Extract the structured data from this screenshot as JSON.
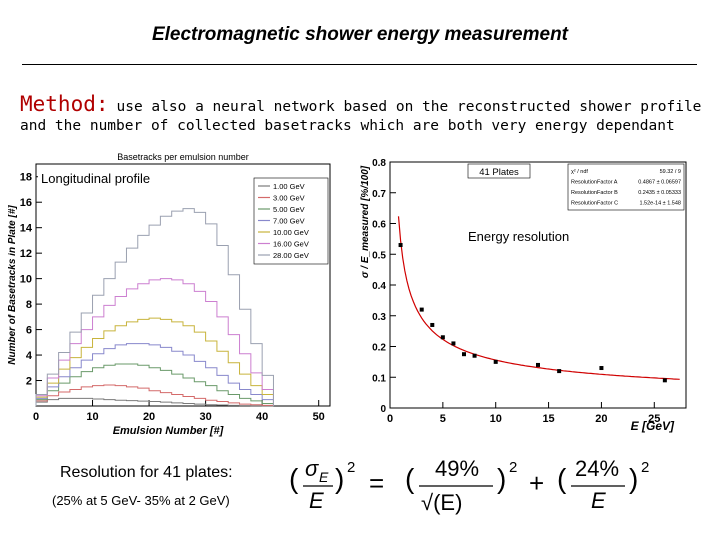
{
  "slide": {
    "title": "Electromagnetic shower energy measurement",
    "method_word": "Method:",
    "method_text": "use also a neural network based on the reconstructed shower profile",
    "method_line2": "and the number of collected basetracks which are both very energy dependant",
    "resolution_label": "Resolution for 41 plates:",
    "resolution_sub": "(25% at 5 GeV- 35% at 2 GeV)",
    "formula": {
      "lhs_sigma": "σ",
      "lhs_sub": "E",
      "lhs_den": "E",
      "exp": "2",
      "term1_num": "49%",
      "term1_den": "√(E)",
      "term2_num": "24%",
      "term2_den": "E"
    }
  },
  "chart_data": [
    {
      "type": "line",
      "caption": "Longitudinal profile",
      "title": "Basetracks per emulsion number",
      "xlabel": "Emulsion Number [#]",
      "ylabel": "Number of Basetracks in Plate [#]",
      "xlim": [
        0,
        52
      ],
      "ylim": [
        0,
        19
      ],
      "xticks": [
        "0",
        "10",
        "20",
        "30",
        "40",
        "50"
      ],
      "yticks": [
        "2",
        "4",
        "6",
        "8",
        "10",
        "12",
        "14",
        "16",
        "18"
      ],
      "legend_position": "top-right",
      "series": [
        {
          "name": "1.00 GeV",
          "color": "#7a7a7a",
          "x": [
            1,
            3,
            5,
            7,
            9,
            11,
            13,
            15,
            17,
            19,
            21,
            23,
            25,
            27,
            29,
            31,
            33,
            35,
            37,
            39,
            41
          ],
          "values": [
            0.3,
            0.5,
            0.6,
            0.6,
            0.6,
            0.55,
            0.5,
            0.45,
            0.42,
            0.38,
            0.35,
            0.3,
            0.25,
            0.2,
            0.15,
            0.1,
            0.08,
            0.05,
            0.03,
            0.02,
            0.01
          ]
        },
        {
          "name": "3.00 GeV",
          "color": "#d46a6a",
          "x": [
            1,
            3,
            5,
            7,
            9,
            11,
            13,
            15,
            17,
            19,
            21,
            23,
            25,
            27,
            29,
            31,
            33,
            35,
            37,
            39,
            41
          ],
          "values": [
            0.4,
            0.8,
            1.1,
            1.3,
            1.5,
            1.6,
            1.65,
            1.6,
            1.5,
            1.4,
            1.2,
            1.05,
            0.9,
            0.75,
            0.6,
            0.45,
            0.35,
            0.25,
            0.15,
            0.1,
            0.05
          ]
        },
        {
          "name": "5.00 GeV",
          "color": "#6a9a6a",
          "x": [
            1,
            3,
            5,
            7,
            9,
            11,
            13,
            15,
            17,
            19,
            21,
            23,
            25,
            27,
            29,
            31,
            33,
            35,
            37,
            39,
            41
          ],
          "values": [
            0.5,
            1.2,
            1.8,
            2.3,
            2.7,
            3.0,
            3.2,
            3.3,
            3.3,
            3.2,
            3.0,
            2.8,
            2.5,
            2.2,
            1.9,
            1.6,
            1.2,
            0.9,
            0.6,
            0.4,
            0.2
          ]
        },
        {
          "name": "7.00 GeV",
          "color": "#8888cc",
          "x": [
            1,
            3,
            5,
            7,
            9,
            11,
            13,
            15,
            17,
            19,
            21,
            23,
            25,
            27,
            29,
            31,
            33,
            35,
            37,
            39,
            41
          ],
          "values": [
            0.6,
            1.5,
            2.3,
            3.0,
            3.6,
            4.1,
            4.5,
            4.8,
            4.9,
            4.9,
            4.8,
            4.6,
            4.3,
            4.0,
            3.5,
            3.0,
            2.4,
            1.8,
            1.3,
            0.9,
            0.5
          ]
        },
        {
          "name": "10.00 GeV",
          "color": "#c8b43c",
          "x": [
            1,
            3,
            5,
            7,
            9,
            11,
            13,
            15,
            17,
            19,
            21,
            23,
            25,
            27,
            29,
            31,
            33,
            35,
            37,
            39,
            41
          ],
          "values": [
            0.7,
            1.8,
            2.9,
            3.8,
            4.6,
            5.3,
            5.9,
            6.3,
            6.6,
            6.8,
            6.9,
            6.8,
            6.6,
            6.3,
            5.8,
            5.1,
            4.3,
            3.4,
            2.5,
            1.6,
            0.9
          ]
        },
        {
          "name": "16.00 GeV",
          "color": "#cc7fd0",
          "x": [
            1,
            3,
            5,
            7,
            9,
            11,
            13,
            15,
            17,
            19,
            21,
            23,
            25,
            27,
            29,
            31,
            33,
            35,
            37,
            39,
            41
          ],
          "values": [
            0.8,
            2.2,
            3.6,
            4.9,
            6.0,
            7.0,
            7.9,
            8.6,
            9.2,
            9.6,
            9.9,
            10.0,
            9.9,
            9.6,
            9.0,
            8.2,
            7.0,
            5.6,
            4.1,
            2.6,
            1.3
          ]
        },
        {
          "name": "28.00 GeV",
          "color": "#9aa0b0",
          "x": [
            1,
            3,
            5,
            7,
            9,
            11,
            13,
            15,
            17,
            19,
            21,
            23,
            25,
            27,
            29,
            31,
            33,
            35,
            37,
            39,
            41
          ],
          "values": [
            0.9,
            2.5,
            4.2,
            5.8,
            7.3,
            8.7,
            10.0,
            11.3,
            12.4,
            13.4,
            14.2,
            14.9,
            15.3,
            15.5,
            15.2,
            14.3,
            12.6,
            10.3,
            7.6,
            4.9,
            2.4
          ]
        }
      ]
    },
    {
      "type": "scatter",
      "caption": "Energy resolution",
      "title": "41 Plates",
      "xlabel": "E [GeV]",
      "ylabel": "σ / E_measured [%/100]",
      "xlim": [
        0,
        28
      ],
      "ylim": [
        0,
        0.8
      ],
      "xticks": [
        "0",
        "5",
        "10",
        "15",
        "20",
        "25"
      ],
      "yticks": [
        "0",
        "0.1",
        "0.2",
        "0.3",
        "0.4",
        "0.5",
        "0.6",
        "0.7",
        "0.8"
      ],
      "stats": [
        [
          "χ² / ndf",
          "59.32 / 9"
        ],
        [
          "ResolutionFactor A",
          "0.4867 ± 0.06597"
        ],
        [
          "ResolutionFactor B",
          "0.2435 ± 0.05333"
        ],
        [
          "ResolutionFactor C",
          "1.52e-14 ± 1.548"
        ]
      ],
      "x": [
        1,
        3,
        4,
        5,
        6,
        7,
        8,
        10,
        14,
        16,
        20,
        26
      ],
      "values": [
        0.53,
        0.32,
        0.27,
        0.23,
        0.21,
        0.175,
        0.17,
        0.15,
        0.14,
        0.12,
        0.13,
        0.09
      ],
      "fit": {
        "name": "fit",
        "color": "#d00000",
        "A": 0.4867,
        "B": 0.2435
      }
    }
  ]
}
